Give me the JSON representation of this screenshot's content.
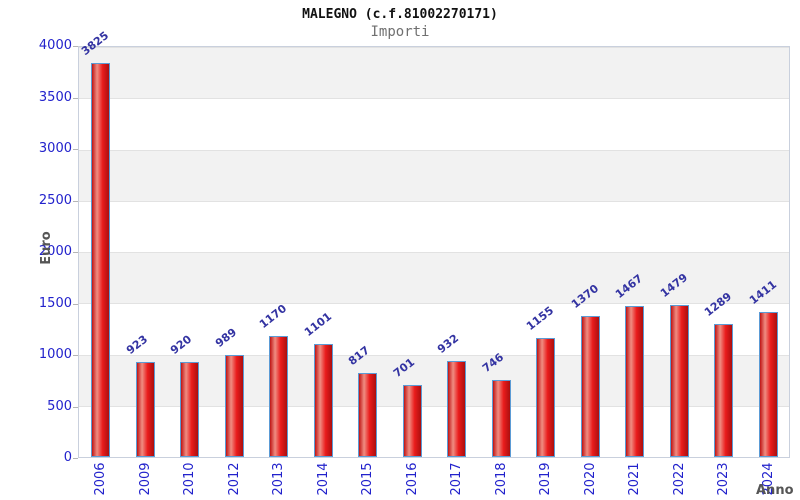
{
  "header": {
    "title": "MALEGNO (c.f.81002270171)",
    "subtitle": "Importi"
  },
  "chart_data": {
    "type": "bar",
    "title": "MALEGNO (c.f.81002270171)",
    "subtitle": "Importi",
    "xlabel": "Anno",
    "ylabel": "Euro",
    "categories": [
      "2006",
      "2009",
      "2010",
      "2012",
      "2013",
      "2014",
      "2015",
      "2016",
      "2017",
      "2018",
      "2019",
      "2020",
      "2021",
      "2022",
      "2023",
      "2024"
    ],
    "values": [
      3825,
      923,
      920,
      989,
      1170,
      1101,
      817,
      701,
      932,
      746,
      1155,
      1370,
      1467,
      1479,
      1289,
      1411
    ],
    "ylim": [
      0,
      4000
    ],
    "yticks": [
      0,
      500,
      1000,
      1500,
      2000,
      2500,
      3000,
      3500,
      4000
    ],
    "legend": null,
    "grid": "alternating horizontal bands every 500",
    "colors": {
      "bar_fill": "#ea1c1c",
      "bar_highlight": "#ef8d82",
      "bar_border": "#5b9bd5",
      "value_label": "#3333a2",
      "tick_label": "#2222cc",
      "axis_title": "#555555",
      "band_alt": "#f2f2f2",
      "plot_border": "#c9d0dd"
    }
  }
}
